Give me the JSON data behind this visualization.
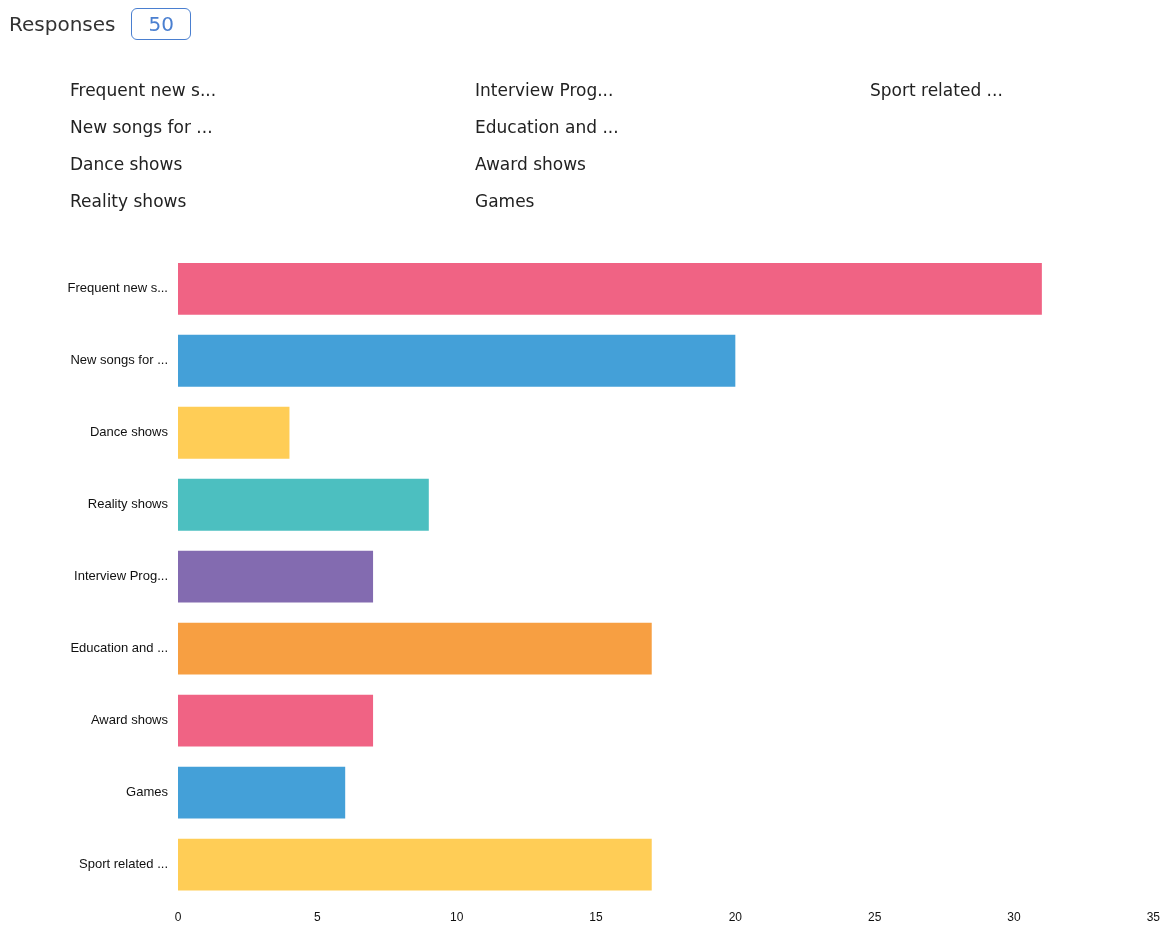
{
  "chart_data": {
    "type": "bar",
    "orientation": "horizontal",
    "title": "Responses",
    "annotations": [
      "50",
      "Frequent new s...",
      "New songs for ...",
      "Dance shows",
      "Reality shows",
      "Interview Prog...",
      "Education and ...",
      "Award shows",
      "Games",
      "Sport related ..."
    ],
    "categories": [
      "Frequent new s...",
      "New songs for ...",
      "Dance shows",
      "Reality shows",
      "Interview Prog...",
      "Education and ...",
      "Award shows",
      "Games",
      "Sport related ..."
    ],
    "values": [
      31,
      20,
      4,
      9,
      7,
      17,
      7,
      6,
      17
    ],
    "colors": [
      "#f06384",
      "#44a0d8",
      "#ffcd56",
      "#4cbfc0",
      "#836bb0",
      "#f79f42",
      "#f06384",
      "#44a0d8",
      "#ffcd56"
    ],
    "xlim": [
      0,
      35
    ],
    "xticks": [
      0,
      5,
      10,
      15,
      20,
      25,
      30,
      35
    ],
    "grid": false
  }
}
